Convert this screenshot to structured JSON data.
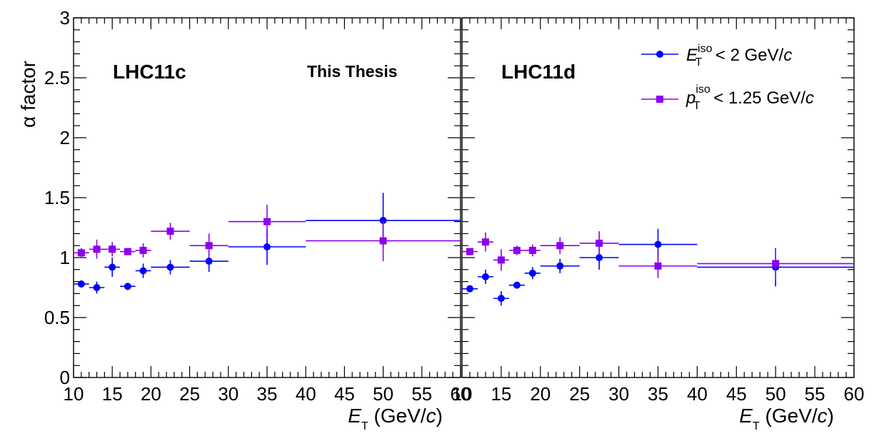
{
  "chart_data": {
    "type": "scatter",
    "ylabel": "α factor",
    "xlabel": {
      "main": "E",
      "sub": "T",
      "unit_prefix": " (GeV/",
      "unit_italic": "c",
      "unit_suffix": ")"
    },
    "watermark": "This Thesis",
    "legend": {
      "placement": "top-right",
      "entries": [
        {
          "series": 0,
          "main": "E",
          "sup": "iso",
          "sub": "T",
          "text": " < 2 GeV/",
          "italic": "c"
        },
        {
          "series": 1,
          "main": "p",
          "sup": "iso",
          "sub": "T",
          "text": " < 1.25 GeV/",
          "italic": "c"
        }
      ]
    },
    "series_style": [
      {
        "name": "E_T^iso < 2 GeV/c",
        "color": "#0000ff",
        "marker": "circle"
      },
      {
        "name": "p_T^iso < 1.25 GeV/c",
        "color": "#8b00f0",
        "marker": "square"
      }
    ],
    "panels": [
      {
        "label": "LHC11c",
        "xlim": [
          10,
          60
        ],
        "ylim": [
          0,
          3
        ],
        "xticks": [
          10,
          15,
          20,
          25,
          30,
          35,
          40,
          45,
          50,
          55,
          60
        ],
        "yticks": [
          0,
          0.5,
          1,
          1.5,
          2,
          2.5,
          3
        ],
        "ytick_labels": [
          "0",
          "0.5",
          "1",
          "1.5",
          "2",
          "2.5",
          "3"
        ],
        "series": [
          {
            "x": [
              11,
              13,
              15,
              17,
              19,
              22.5,
              27.5,
              35,
              50
            ],
            "xerr": [
              1,
              1,
              1,
              1,
              1,
              2.5,
              2.5,
              5,
              10
            ],
            "y": [
              0.78,
              0.75,
              0.92,
              0.76,
              0.89,
              0.92,
              0.97,
              1.09,
              1.31
            ],
            "yerr": [
              0.03,
              0.05,
              0.08,
              0.03,
              0.06,
              0.06,
              0.09,
              0.15,
              0.23
            ]
          },
          {
            "x": [
              11,
              13,
              15,
              17,
              19,
              22.5,
              27.5,
              35,
              50
            ],
            "xerr": [
              1,
              1,
              1,
              1,
              1,
              2.5,
              2.5,
              5,
              10
            ],
            "y": [
              1.04,
              1.07,
              1.07,
              1.05,
              1.06,
              1.22,
              1.1,
              1.3,
              1.14
            ],
            "yerr": [
              0.04,
              0.08,
              0.06,
              0.03,
              0.06,
              0.07,
              0.1,
              0.14,
              0.17
            ]
          }
        ]
      },
      {
        "label": "LHC11d",
        "xlim": [
          10,
          60
        ],
        "ylim": [
          0,
          3
        ],
        "xticks": [
          10,
          15,
          20,
          25,
          30,
          35,
          40,
          45,
          50,
          55,
          60
        ],
        "yticks": [
          0,
          0.5,
          1,
          1.5,
          2,
          2.5,
          3
        ],
        "series": [
          {
            "x": [
              11,
              13,
              15,
              17,
              19,
              22.5,
              27.5,
              35,
              50
            ],
            "xerr": [
              1,
              1,
              1,
              1,
              1,
              2.5,
              2.5,
              5,
              10
            ],
            "y": [
              0.74,
              0.84,
              0.66,
              0.77,
              0.87,
              0.93,
              1.0,
              1.11,
              0.92
            ],
            "yerr": [
              0.02,
              0.06,
              0.06,
              0.02,
              0.05,
              0.06,
              0.1,
              0.13,
              0.16
            ]
          },
          {
            "x": [
              11,
              13,
              15,
              17,
              19,
              22.5,
              27.5,
              35,
              50
            ],
            "xerr": [
              1,
              1,
              1,
              1,
              1,
              2.5,
              2.5,
              5,
              10
            ],
            "y": [
              1.05,
              1.13,
              0.98,
              1.06,
              1.06,
              1.1,
              1.12,
              0.93,
              0.95
            ],
            "yerr": [
              0.03,
              0.08,
              0.09,
              0.04,
              0.05,
              0.07,
              0.1,
              0.1,
              0.13
            ]
          }
        ]
      }
    ]
  }
}
